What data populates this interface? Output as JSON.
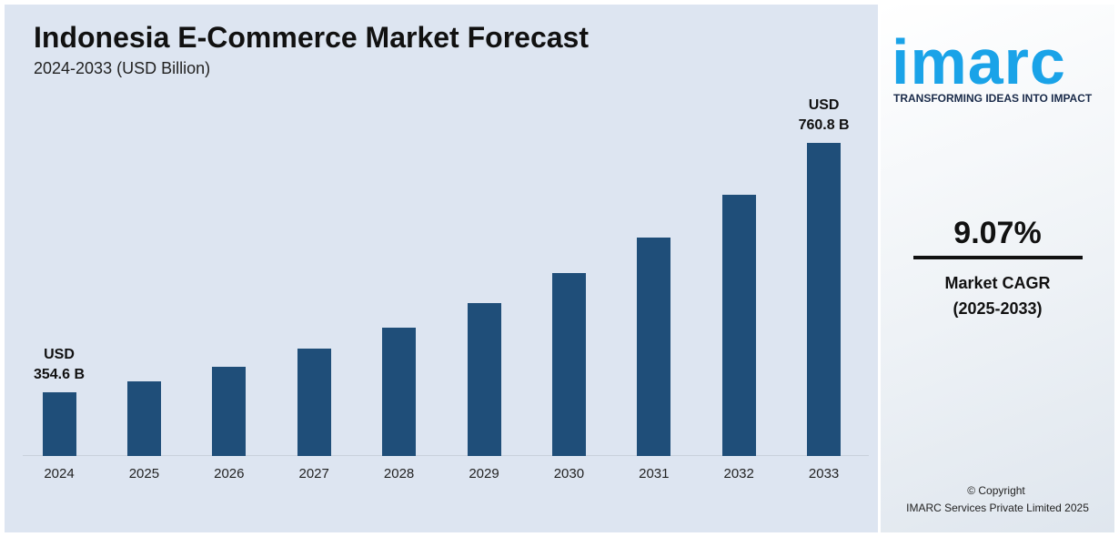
{
  "chart_data": {
    "type": "bar",
    "title": "Indonesia E-Commerce Market Forecast",
    "subtitle": "2024-2033 (USD Billion)",
    "categories": [
      "2024",
      "2025",
      "2026",
      "2027",
      "2028",
      "2029",
      "2030",
      "2031",
      "2032",
      "2033"
    ],
    "values": [
      354.6,
      372,
      396,
      426,
      460,
      500,
      549,
      607,
      677,
      760.8
    ],
    "value_labels": [
      "USD 354.6 B",
      null,
      null,
      null,
      null,
      null,
      null,
      null,
      null,
      "USD 760.8 B"
    ],
    "color": "#1f4e79",
    "ylim": [
      250,
      800
    ]
  },
  "sidebar": {
    "logo": "imarc",
    "tagline": "TRANSFORMING IDEAS INTO IMPACT",
    "cagr": "9.07%",
    "cagr_label": "Market CAGR",
    "cagr_period": "(2025-2033)",
    "copyright": "© Copyright",
    "company": "IMARC Services Private Limited 2025"
  }
}
